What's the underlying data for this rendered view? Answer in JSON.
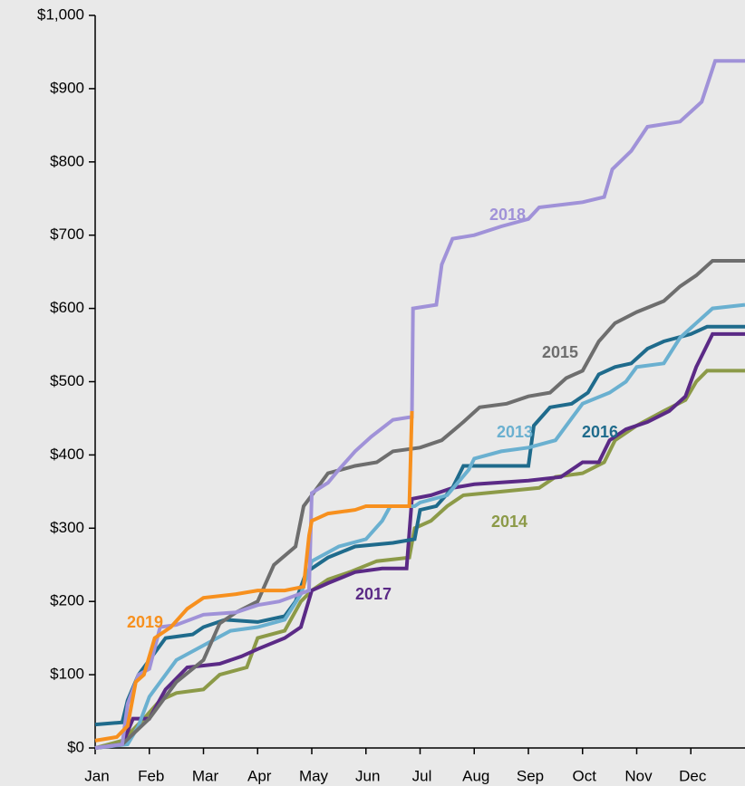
{
  "chart_data": {
    "type": "line",
    "xlim": [
      0,
      12
    ],
    "xticks": [
      {
        "value": 0,
        "label": "Jan"
      },
      {
        "value": 1,
        "label": "Feb"
      },
      {
        "value": 2,
        "label": "Mar"
      },
      {
        "value": 3,
        "label": "Apr"
      },
      {
        "value": 4,
        "label": "May"
      },
      {
        "value": 5,
        "label": "Jun"
      },
      {
        "value": 6,
        "label": "Jul"
      },
      {
        "value": 7,
        "label": "Aug"
      },
      {
        "value": 8,
        "label": "Sep"
      },
      {
        "value": 9,
        "label": "Oct"
      },
      {
        "value": 10,
        "label": "Nov"
      },
      {
        "value": 11,
        "label": "Dec"
      }
    ],
    "ylim": [
      0,
      1000
    ],
    "yticks": [
      {
        "value": 0,
        "label": "$0"
      },
      {
        "value": 100,
        "label": "$100"
      },
      {
        "value": 200,
        "label": "$200"
      },
      {
        "value": 300,
        "label": "$300"
      },
      {
        "value": 400,
        "label": "$400"
      },
      {
        "value": 500,
        "label": "$500"
      },
      {
        "value": 600,
        "label": "$600"
      },
      {
        "value": 700,
        "label": "$700"
      },
      {
        "value": 800,
        "label": "$800"
      },
      {
        "value": 900,
        "label": "$900"
      },
      {
        "value": 1000,
        "label": "$1,000"
      }
    ],
    "grid": false,
    "series": [
      {
        "name": "2014",
        "color": "#8c9a48",
        "x": [
          0,
          0.5,
          0.9,
          1.2,
          1.5,
          2.0,
          2.3,
          2.8,
          3.0,
          3.5,
          3.8,
          4.0,
          4.3,
          4.7,
          5.2,
          5.8,
          5.9,
          6.2,
          6.5,
          6.8,
          7.5,
          8.2,
          8.5,
          9.0,
          9.4,
          9.6,
          10.0,
          10.5,
          10.9,
          11.1,
          11.3,
          12
        ],
        "values": [
          0,
          10,
          40,
          65,
          75,
          80,
          100,
          110,
          150,
          160,
          200,
          215,
          230,
          240,
          255,
          260,
          300,
          310,
          330,
          345,
          350,
          355,
          370,
          375,
          390,
          420,
          440,
          460,
          475,
          500,
          515,
          515
        ]
      },
      {
        "name": "2017",
        "color": "#5b2a86",
        "x": [
          0,
          0.5,
          0.7,
          1.0,
          1.3,
          1.7,
          2.3,
          2.7,
          3.0,
          3.5,
          3.8,
          4.0,
          4.3,
          4.8,
          5.3,
          5.75,
          5.85,
          6.2,
          6.6,
          7.0,
          8.0,
          8.6,
          9.0,
          9.3,
          9.5,
          9.8,
          10.2,
          10.6,
          10.9,
          11.1,
          11.4,
          12
        ],
        "values": [
          0,
          5,
          40,
          40,
          80,
          110,
          115,
          125,
          135,
          150,
          165,
          215,
          225,
          240,
          245,
          245,
          340,
          345,
          355,
          360,
          365,
          370,
          390,
          390,
          420,
          435,
          445,
          460,
          480,
          520,
          565,
          565
        ]
      },
      {
        "name": "2016",
        "color": "#1f6b8c",
        "x": [
          0,
          0.5,
          0.6,
          0.8,
          1.0,
          1.3,
          1.8,
          2.0,
          2.4,
          3.0,
          3.5,
          3.7,
          3.9,
          4.3,
          4.8,
          5.5,
          5.9,
          6.0,
          6.3,
          6.6,
          6.8,
          8.0,
          8.1,
          8.4,
          8.8,
          9.1,
          9.3,
          9.6,
          9.9,
          10.2,
          10.5,
          11.0,
          11.3,
          12
        ],
        "values": [
          32,
          35,
          65,
          100,
          120,
          150,
          155,
          165,
          175,
          172,
          180,
          200,
          240,
          260,
          275,
          280,
          285,
          325,
          330,
          355,
          385,
          385,
          440,
          465,
          470,
          485,
          510,
          520,
          525,
          545,
          555,
          565,
          575,
          575
        ]
      },
      {
        "name": "2013",
        "color": "#6ab0d0",
        "x": [
          0,
          0.6,
          0.8,
          1.0,
          1.5,
          2.0,
          2.5,
          3.0,
          3.5,
          3.8,
          4.0,
          4.5,
          5.0,
          5.3,
          5.45,
          5.9,
          6.0,
          6.5,
          6.9,
          7.0,
          7.5,
          8.0,
          8.5,
          8.8,
          9.0,
          9.5,
          9.8,
          10.0,
          10.5,
          10.8,
          11.1,
          11.4,
          12
        ],
        "values": [
          0,
          5,
          30,
          70,
          120,
          140,
          160,
          165,
          175,
          210,
          255,
          275,
          285,
          310,
          330,
          330,
          335,
          345,
          380,
          395,
          405,
          410,
          420,
          450,
          470,
          485,
          500,
          520,
          525,
          560,
          580,
          600,
          605
        ]
      },
      {
        "name": "2015",
        "color": "#6e6e6e",
        "x": [
          0,
          0.5,
          1.0,
          1.5,
          2.0,
          2.3,
          2.6,
          3.0,
          3.3,
          3.7,
          3.85,
          4.0,
          4.3,
          4.8,
          5.2,
          5.5,
          6.0,
          6.4,
          6.8,
          7.1,
          7.6,
          8.0,
          8.4,
          8.7,
          9.0,
          9.3,
          9.6,
          10.0,
          10.5,
          10.8,
          11.1,
          11.4,
          12
        ],
        "values": [
          0,
          5,
          40,
          90,
          120,
          170,
          185,
          200,
          250,
          275,
          330,
          345,
          375,
          385,
          390,
          405,
          410,
          420,
          445,
          465,
          470,
          480,
          485,
          505,
          515,
          555,
          580,
          595,
          610,
          630,
          645,
          665,
          665
        ]
      },
      {
        "name": "2018",
        "color": "#a092d8",
        "x": [
          0,
          0.5,
          0.6,
          0.8,
          1.0,
          1.2,
          1.5,
          2.0,
          2.6,
          3.0,
          3.4,
          3.95,
          4.0,
          4.3,
          4.5,
          4.8,
          5.1,
          5.5,
          5.85,
          5.87,
          6.3,
          6.4,
          6.6,
          7.0,
          7.5,
          8.0,
          8.2,
          9.0,
          9.4,
          9.55,
          9.9,
          10.2,
          10.8,
          11.2,
          11.45,
          12
        ],
        "values": [
          0,
          5,
          60,
          100,
          108,
          165,
          168,
          182,
          185,
          195,
          200,
          215,
          348,
          362,
          380,
          405,
          425,
          448,
          452,
          600,
          605,
          660,
          695,
          700,
          712,
          722,
          738,
          745,
          752,
          790,
          815,
          848,
          855,
          882,
          938,
          938
        ]
      },
      {
        "name": "2019",
        "color": "#f7901e",
        "x": [
          0,
          0.4,
          0.6,
          0.75,
          0.9,
          1.1,
          1.4,
          1.7,
          2.0,
          2.6,
          3.0,
          3.5,
          3.85,
          3.95,
          4.0,
          4.3,
          4.8,
          5.0,
          5.8,
          5.85
        ],
        "values": [
          10,
          15,
          30,
          90,
          100,
          150,
          165,
          190,
          205,
          210,
          215,
          215,
          220,
          290,
          310,
          320,
          325,
          330,
          330,
          460
        ]
      }
    ]
  }
}
